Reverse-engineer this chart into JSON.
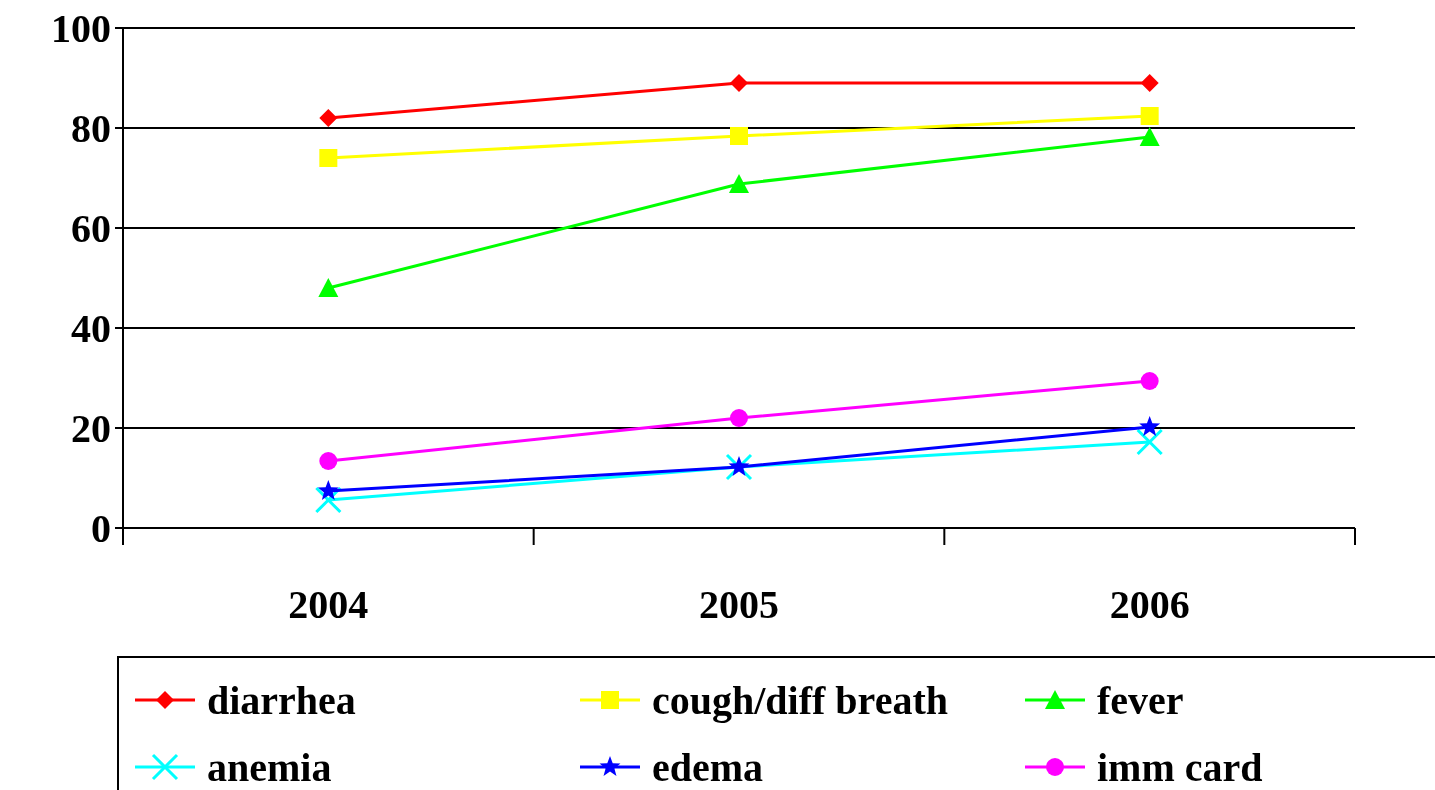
{
  "chart_data": {
    "type": "line",
    "categories": [
      "2004",
      "2005",
      "2006"
    ],
    "ylim": [
      0,
      100
    ],
    "yticks": [
      0,
      20,
      40,
      60,
      80,
      100
    ],
    "grid": "y",
    "legend": "bottom",
    "series": [
      {
        "name": "diarrhea",
        "color": "#ff0000",
        "marker": "diamond",
        "values": [
          82,
          89,
          89
        ]
      },
      {
        "name": "cough/diff breath",
        "color": "#ffff00",
        "marker": "square",
        "values": [
          74,
          78.4,
          82.4
        ]
      },
      {
        "name": "fever",
        "color": "#00ff00",
        "marker": "triangle",
        "values": [
          48,
          68.8,
          78.2
        ]
      },
      {
        "name": "anemia",
        "color": "#00ffff",
        "marker": "cross",
        "values": [
          5.6,
          12.2,
          17.2
        ]
      },
      {
        "name": "edema",
        "color": "#0000ff",
        "marker": "star",
        "values": [
          7.4,
          12.2,
          20.2
        ]
      },
      {
        "name": "imm card",
        "color": "#ff00ff",
        "marker": "circle",
        "values": [
          13.4,
          22,
          29.4
        ]
      }
    ]
  }
}
